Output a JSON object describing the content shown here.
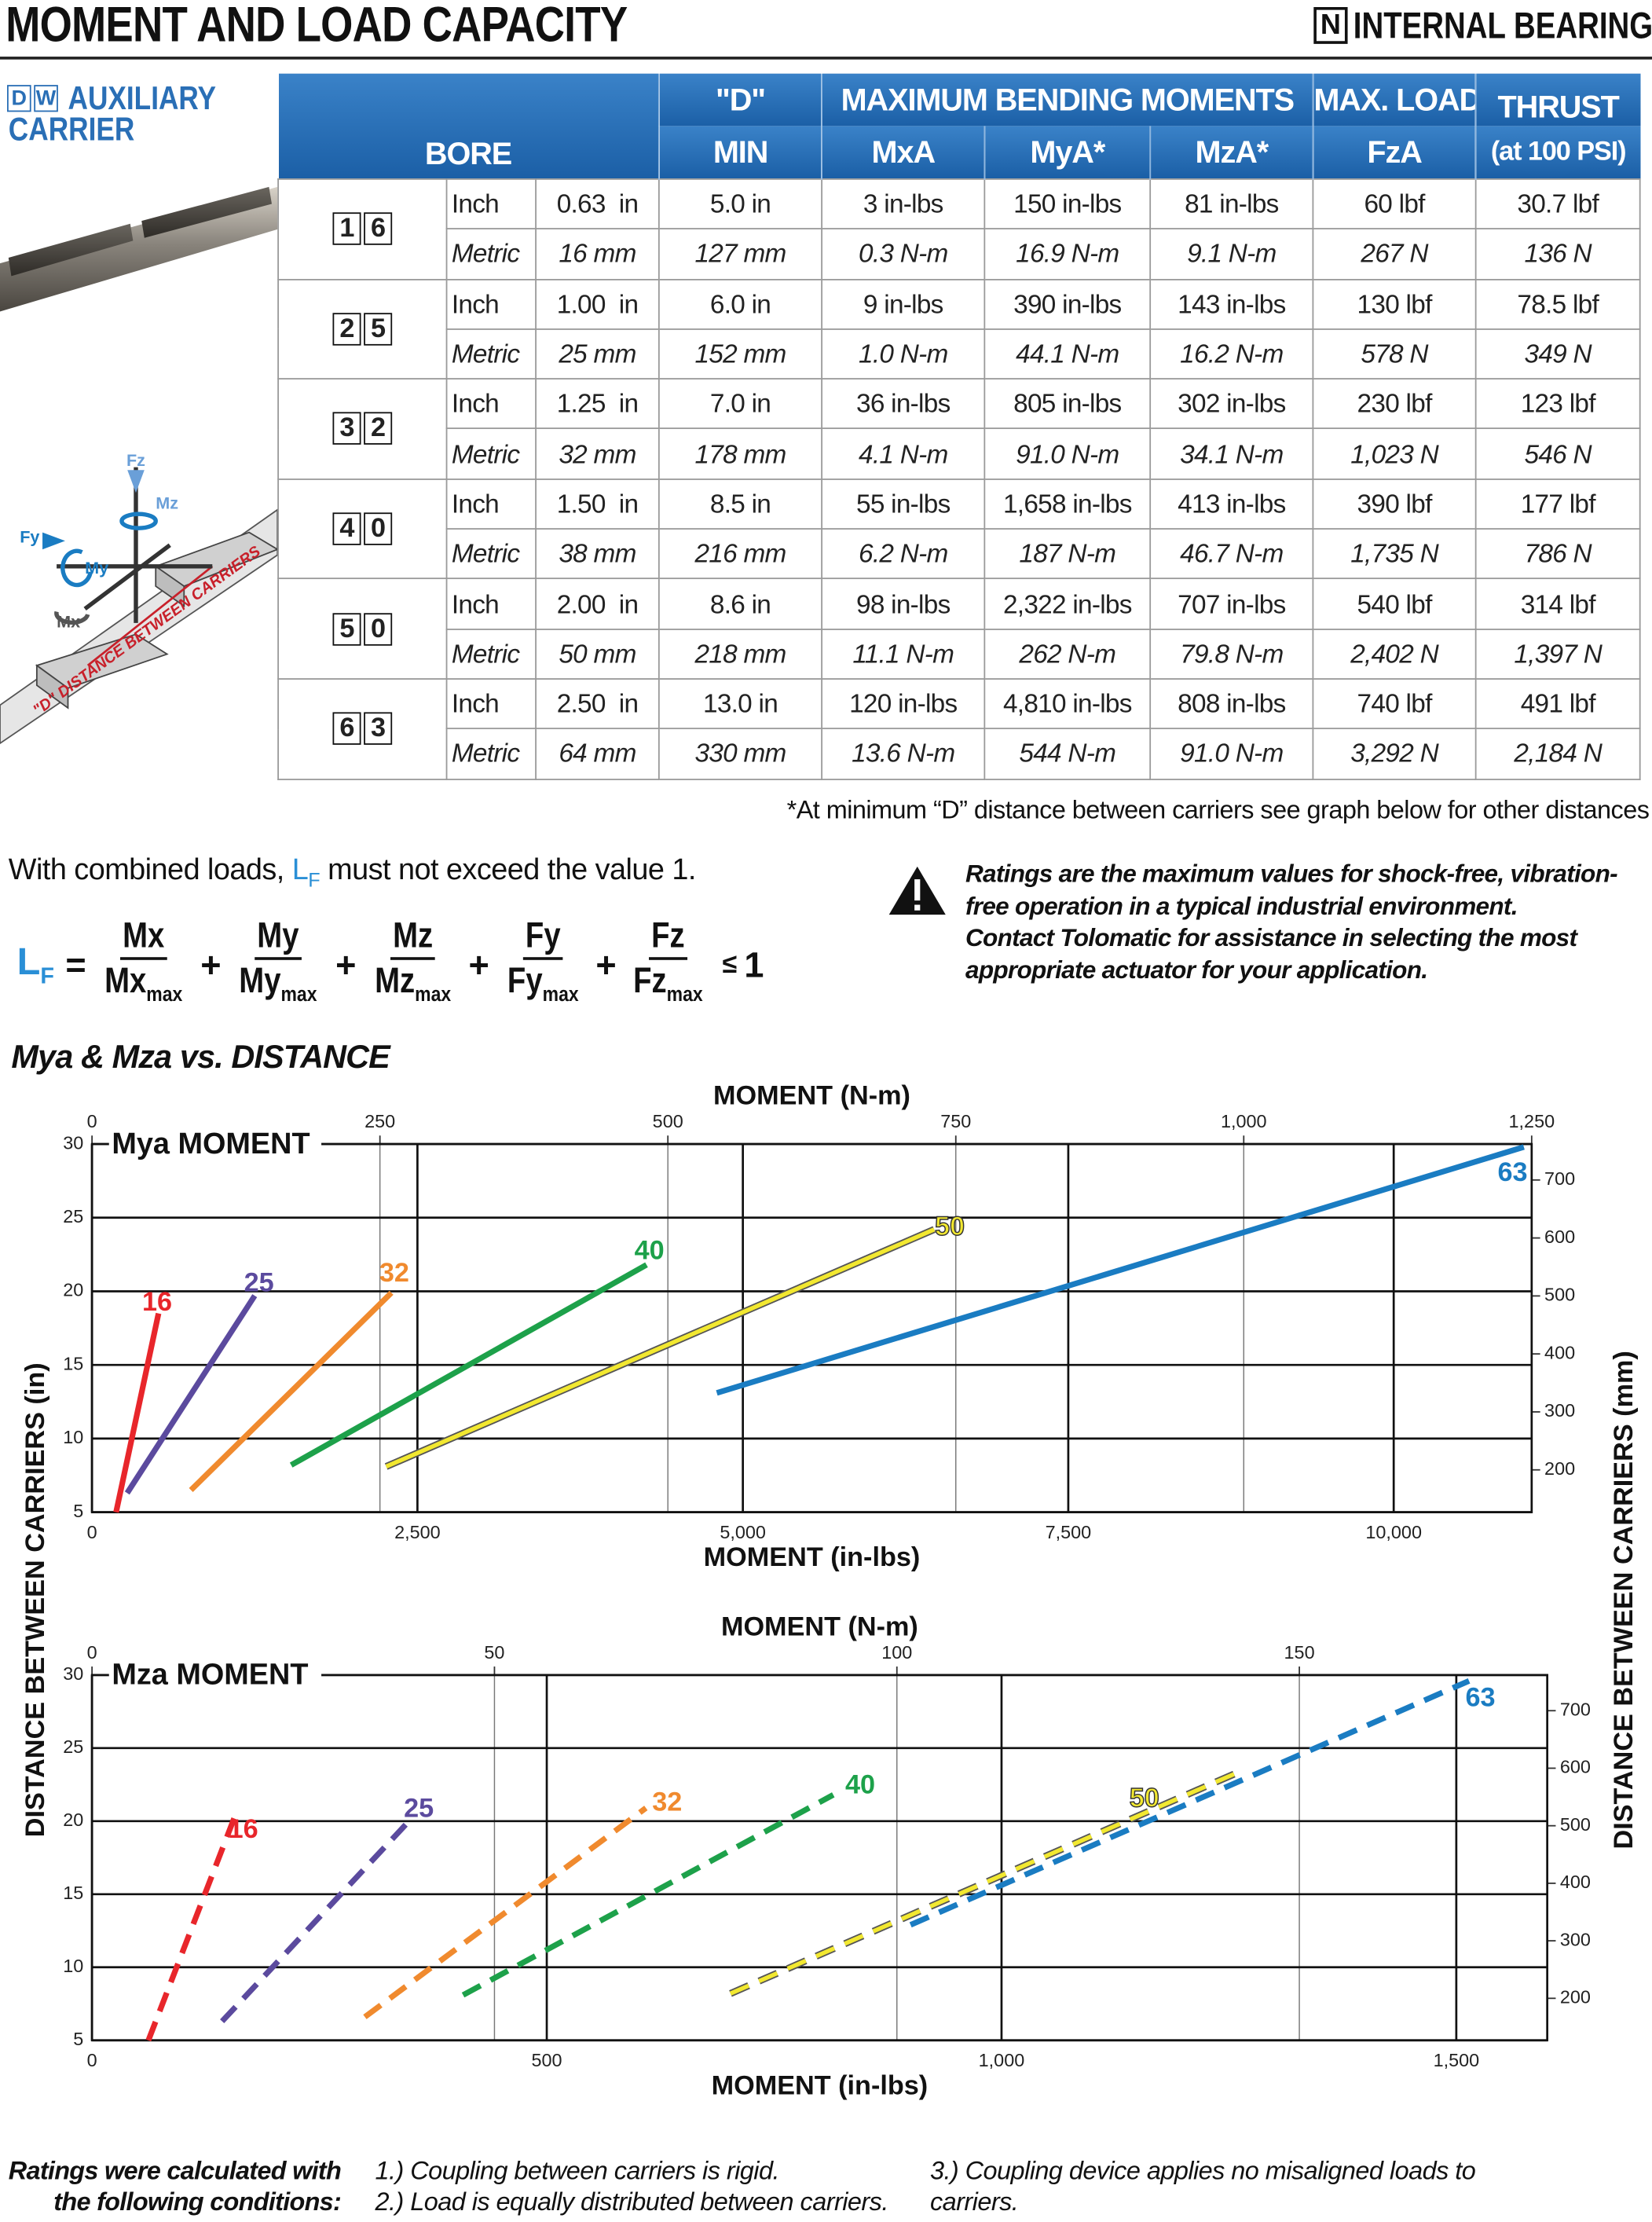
{
  "header": {
    "title": "MOMENT AND LOAD CAPACITY",
    "badge": "N",
    "subtitle": "INTERNAL BEARING"
  },
  "side": {
    "badge": [
      "D",
      "W"
    ],
    "line1": "AUXILIARY",
    "line2": "CARRIER"
  },
  "diagram": {
    "labels": [
      "Fz",
      "Mz",
      "Fy",
      "My",
      "Mx"
    ],
    "rail_text": "\"D\" DISTANCE BETWEEN CARRIERS"
  },
  "table": {
    "head": {
      "bore": "BORE",
      "d_top": "\"D\"",
      "d_bottom": "MIN",
      "moments": "MAXIMUM BENDING MOMENTS",
      "mx": "MxA",
      "my": "MyA*",
      "mz": "MzA*",
      "load_top": "MAX. LOAD",
      "load_bottom": "FzA",
      "thrust_top": "THRUST",
      "thrust_bottom": "(at 100 PSI)"
    },
    "rows": [
      {
        "bore": [
          "1",
          "6"
        ],
        "inch": [
          "Inch",
          "0.63  in",
          "5.0 in",
          "3 in-lbs",
          "150 in-lbs",
          "81 in-lbs",
          "60 lbf",
          "30.7 lbf"
        ],
        "metric": [
          "Metric",
          "16 mm",
          "127 mm",
          "0.3 N-m",
          "16.9 N-m",
          "9.1 N-m",
          "267 N",
          "136 N"
        ]
      },
      {
        "bore": [
          "2",
          "5"
        ],
        "inch": [
          "Inch",
          "1.00  in",
          "6.0 in",
          "9 in-lbs",
          "390 in-lbs",
          "143 in-lbs",
          "130 lbf",
          "78.5 lbf"
        ],
        "metric": [
          "Metric",
          "25 mm",
          "152 mm",
          "1.0 N-m",
          "44.1 N-m",
          "16.2 N-m",
          "578 N",
          "349 N"
        ]
      },
      {
        "bore": [
          "3",
          "2"
        ],
        "inch": [
          "Inch",
          "1.25  in",
          "7.0 in",
          "36 in-lbs",
          "805 in-lbs",
          "302 in-lbs",
          "230 lbf",
          "123 lbf"
        ],
        "metric": [
          "Metric",
          "32 mm",
          "178 mm",
          "4.1 N-m",
          "91.0 N-m",
          "34.1 N-m",
          "1,023 N",
          "546 N"
        ]
      },
      {
        "bore": [
          "4",
          "0"
        ],
        "inch": [
          "Inch",
          "1.50  in",
          "8.5 in",
          "55 in-lbs",
          "1,658 in-lbs",
          "413 in-lbs",
          "390 lbf",
          "177 lbf"
        ],
        "metric": [
          "Metric",
          "38 mm",
          "216 mm",
          "6.2 N-m",
          "187 N-m",
          "46.7 N-m",
          "1,735 N",
          "786 N"
        ]
      },
      {
        "bore": [
          "5",
          "0"
        ],
        "inch": [
          "Inch",
          "2.00  in",
          "8.6 in",
          "98 in-lbs",
          "2,322 in-lbs",
          "707 in-lbs",
          "540 lbf",
          "314 lbf"
        ],
        "metric": [
          "Metric",
          "50 mm",
          "218 mm",
          "11.1 N-m",
          "262 N-m",
          "79.8 N-m",
          "2,402 N",
          "1,397 N"
        ]
      },
      {
        "bore": [
          "6",
          "3"
        ],
        "inch": [
          "Inch",
          "2.50  in",
          "13.0 in",
          "120 in-lbs",
          "4,810 in-lbs",
          "808 in-lbs",
          "740 lbf",
          "491 lbf"
        ],
        "metric": [
          "Metric",
          "64 mm",
          "330 mm",
          "13.6 N-m",
          "544 N-m",
          "91.0 N-m",
          "3,292 N",
          "2,184 N"
        ]
      }
    ],
    "footnote": "*At minimum “D” distance between carriers see graph below for other distances"
  },
  "intro": [
    "With combined loads, ",
    "L",
    "F",
    " must not exceed the value 1."
  ],
  "formula": {
    "lhs": "L",
    "lhs_sub": "F",
    "eq": "=",
    "plus": "+",
    "rel": "≤",
    "rhs": "1",
    "terms": [
      {
        "num": "Mx",
        "den": "Mx",
        "sub": "max"
      },
      {
        "num": "My",
        "den": "My",
        "sub": "max"
      },
      {
        "num": "Mz",
        "den": "Mz",
        "sub": "max"
      },
      {
        "num": "Fy",
        "den": "Fy",
        "sub": "max"
      },
      {
        "num": "Fz",
        "den": "Fz",
        "sub": "max"
      }
    ]
  },
  "warning": [
    "Ratings are the maximum values for shock-free, vibration-",
    "free operation in a typical industrial environment.",
    "Contact Tolomatic for assistance in selecting the most",
    "appropriate actuator for your application."
  ],
  "charts_section": {
    "title": "Mya & Mza vs. DISTANCE",
    "y_label": "DISTANCE BETWEEN CARRIERS (in)",
    "y2_label": "DISTANCE BETWEEN CARRIERS (mm)"
  },
  "chart_data": [
    {
      "type": "line",
      "title": "Mya MOMENT",
      "x_label": "MOMENT (in-lbs)",
      "x2_label": "MOMENT (N-m)",
      "dashed": false,
      "grid": true,
      "xlim": [
        0,
        11060
      ],
      "xticks": [
        0,
        {
          "value": 2500,
          "label": "2,500"
        },
        {
          "value": 5000,
          "label": "5,000"
        },
        {
          "value": 7500,
          "label": "7,500"
        },
        {
          "value": 10000,
          "label": "10,000"
        }
      ],
      "x2lim": [
        0,
        1250
      ],
      "x2ticks": [
        0,
        250,
        500,
        750,
        {
          "value": 1000,
          "label": "1,000"
        },
        {
          "value": 1250,
          "label": "1,250"
        }
      ],
      "ylim": [
        5,
        30
      ],
      "yticks": [
        5,
        10,
        15,
        20,
        25,
        30
      ],
      "y2lim": [
        127,
        762
      ],
      "y2ticks": [
        200,
        300,
        400,
        500,
        600,
        700
      ],
      "series": [
        {
          "name": "16",
          "color": "#e8262b",
          "x": [
            185,
            511
          ],
          "values": [
            5,
            18.5
          ]
        },
        {
          "name": "25",
          "color": "#5b4a9e",
          "x": [
            270,
            1250
          ],
          "values": [
            6.3,
            19.7
          ]
        },
        {
          "name": "32",
          "color": "#f08a2e",
          "x": [
            760,
            2300
          ],
          "values": [
            6.5,
            19.9
          ]
        },
        {
          "name": "40",
          "color": "#1da14a",
          "x": [
            1530,
            4260
          ],
          "values": [
            8.2,
            21.8
          ]
        },
        {
          "name": "50",
          "color": "#f2e830",
          "x": [
            2260,
            6470
          ],
          "values": [
            8.1,
            24.2
          ]
        },
        {
          "name": "63",
          "color": "#1a7cc2",
          "x": [
            4800,
            11000
          ],
          "values": [
            13.1,
            29.8
          ]
        }
      ]
    },
    {
      "type": "line",
      "title": "Mza MOMENT",
      "x_label": "MOMENT (in-lbs)",
      "x2_label": "MOMENT (N-m)",
      "dashed": true,
      "grid": true,
      "xlim": [
        0,
        1600
      ],
      "xticks": [
        0,
        500,
        {
          "value": 1000,
          "label": "1,000"
        },
        {
          "value": 1500,
          "label": "1,500"
        }
      ],
      "x2lim": [
        0,
        180.8
      ],
      "x2ticks": [
        0,
        50,
        100,
        150
      ],
      "ylim": [
        5,
        30
      ],
      "yticks": [
        5,
        10,
        15,
        20,
        25,
        30
      ],
      "y2lim": [
        127,
        762
      ],
      "y2ticks": [
        200,
        300,
        400,
        500,
        600,
        700
      ],
      "series": [
        {
          "name": "16",
          "color": "#e8262b",
          "x": [
            62,
            160
          ],
          "values": [
            5,
            20.8
          ]
        },
        {
          "name": "25",
          "color": "#5b4a9e",
          "x": [
            143,
            350
          ],
          "values": [
            6.3,
            20.1
          ]
        },
        {
          "name": "32",
          "color": "#f08a2e",
          "x": [
            300,
            609
          ],
          "values": [
            6.6,
            20.9
          ]
        },
        {
          "name": "40",
          "color": "#1da14a",
          "x": [
            408,
            815
          ],
          "values": [
            8.1,
            21.8
          ]
        },
        {
          "name": "50",
          "color": "#f2e830",
          "x": [
            702,
            1266
          ],
          "values": [
            8.2,
            23.5
          ]
        },
        {
          "name": "63",
          "color": "#1a7cc2",
          "x": [
            900,
            1514
          ],
          "values": [
            12.9,
            29.6
          ]
        }
      ]
    }
  ],
  "conditions": {
    "lead": [
      "Ratings were calculated with",
      "the following conditions:"
    ],
    "items": [
      "1.) Coupling between carriers is rigid.",
      "2.) Load is equally distributed between carriers.",
      "3.) Coupling device applies no misaligned loads to",
      "carriers."
    ]
  }
}
